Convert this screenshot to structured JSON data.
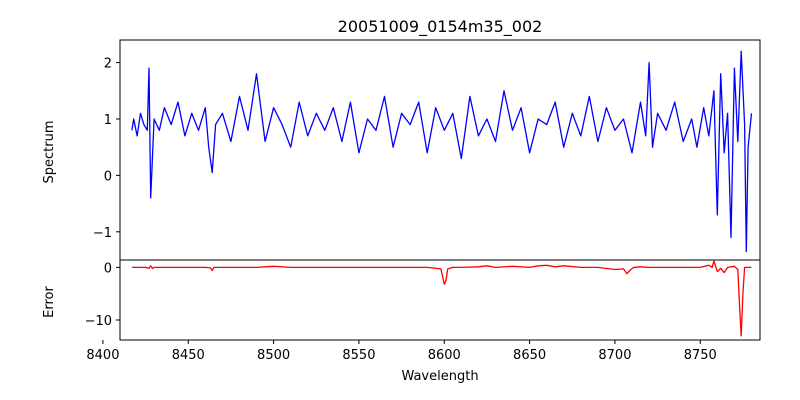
{
  "chart_data": {
    "type": "line",
    "title": "20051009_0154m35_002",
    "xlabel": "Wavelength",
    "x_ticks": [
      8400,
      8450,
      8500,
      8550,
      8600,
      8650,
      8700,
      8750
    ],
    "panels": [
      {
        "ylabel": "Spectrum",
        "xlim": [
          8410,
          8785
        ],
        "ylim": [
          -1.5,
          2.4
        ],
        "yticks": [
          -1,
          0,
          1,
          2
        ],
        "color": "#0000ff",
        "series": [
          {
            "x": [
              8417,
              8418,
              8420,
              8422,
              8424,
              8426,
              8427,
              8428,
              8429,
              8430,
              8433,
              8436,
              8440,
              8444,
              8448,
              8452,
              8456,
              8460,
              8462,
              8464,
              8466,
              8470,
              8475,
              8480,
              8485,
              8490,
              8495,
              8500,
              8505,
              8510,
              8515,
              8520,
              8525,
              8530,
              8535,
              8540,
              8545,
              8550,
              8555,
              8560,
              8565,
              8570,
              8575,
              8580,
              8585,
              8590,
              8595,
              8600,
              8605,
              8610,
              8615,
              8620,
              8625,
              8630,
              8635,
              8640,
              8645,
              8650,
              8655,
              8660,
              8665,
              8670,
              8675,
              8680,
              8685,
              8690,
              8695,
              8700,
              8705,
              8710,
              8715,
              8718,
              8720,
              8722,
              8725,
              8730,
              8735,
              8740,
              8745,
              8748,
              8752,
              8755,
              8758,
              8760,
              8762,
              8764,
              8766,
              8768,
              8770,
              8772,
              8774,
              8776,
              8777,
              8778,
              8780
            ],
            "y": [
              0.8,
              1.0,
              0.7,
              1.1,
              0.9,
              0.8,
              1.9,
              -0.4,
              0.3,
              1.0,
              0.8,
              1.2,
              0.9,
              1.3,
              0.7,
              1.1,
              0.8,
              1.2,
              0.5,
              0.05,
              0.9,
              1.1,
              0.6,
              1.4,
              0.8,
              1.8,
              0.6,
              1.2,
              0.9,
              0.5,
              1.3,
              0.7,
              1.1,
              0.8,
              1.2,
              0.6,
              1.3,
              0.4,
              1.0,
              0.8,
              1.4,
              0.5,
              1.1,
              0.9,
              1.3,
              0.4,
              1.2,
              0.8,
              1.1,
              0.3,
              1.4,
              0.7,
              1.0,
              0.6,
              1.5,
              0.8,
              1.2,
              0.4,
              1.0,
              0.9,
              1.3,
              0.5,
              1.1,
              0.7,
              1.4,
              0.6,
              1.2,
              0.8,
              1.0,
              0.4,
              1.3,
              0.7,
              2.0,
              0.5,
              1.1,
              0.8,
              1.3,
              0.6,
              1.0,
              0.5,
              1.2,
              0.7,
              1.5,
              -0.7,
              1.8,
              0.4,
              1.1,
              -1.1,
              1.9,
              0.6,
              2.2,
              0.9,
              -1.35,
              0.5,
              1.1
            ]
          }
        ]
      },
      {
        "ylabel": "Error",
        "xlim": [
          8410,
          8785
        ],
        "ylim": [
          -13.8,
          1.4
        ],
        "yticks": [
          -10,
          0
        ],
        "color": "#ff0000",
        "series": [
          {
            "x": [
              8417,
              8420,
              8425,
              8427,
              8428,
              8429,
              8430,
              8440,
              8450,
              8460,
              8463,
              8464,
              8465,
              8470,
              8480,
              8490,
              8500,
              8510,
              8520,
              8530,
              8540,
              8550,
              8560,
              8570,
              8580,
              8590,
              8598,
              8600,
              8601,
              8602,
              8605,
              8610,
              8620,
              8625,
              8630,
              8640,
              8650,
              8655,
              8660,
              8665,
              8670,
              8680,
              8690,
              8700,
              8705,
              8707,
              8709,
              8711,
              8715,
              8720,
              8730,
              8740,
              8750,
              8755,
              8757,
              8758,
              8760,
              8762,
              8764,
              8766,
              8770,
              8772,
              8773,
              8774,
              8775,
              8776,
              8777,
              8780
            ],
            "y": [
              0,
              0,
              0,
              -0.2,
              0.3,
              -0.2,
              0,
              0,
              0,
              0,
              -0.1,
              -0.6,
              0,
              0,
              0,
              0,
              0.2,
              0,
              0,
              0,
              0,
              0,
              0,
              0,
              0,
              0,
              -0.3,
              -3.2,
              -2.5,
              -0.3,
              0,
              0,
              0.1,
              0.3,
              0,
              0.2,
              0,
              0.3,
              0.4,
              0.1,
              0.3,
              0,
              0,
              -0.4,
              -0.3,
              -1.2,
              -0.5,
              0,
              0.1,
              0,
              0,
              0,
              0,
              0.4,
              0,
              1.2,
              -0.8,
              -0.2,
              -1.0,
              0,
              0.2,
              -0.4,
              -7.0,
              -13.0,
              -5.0,
              0,
              0,
              0
            ]
          }
        ]
      }
    ]
  }
}
